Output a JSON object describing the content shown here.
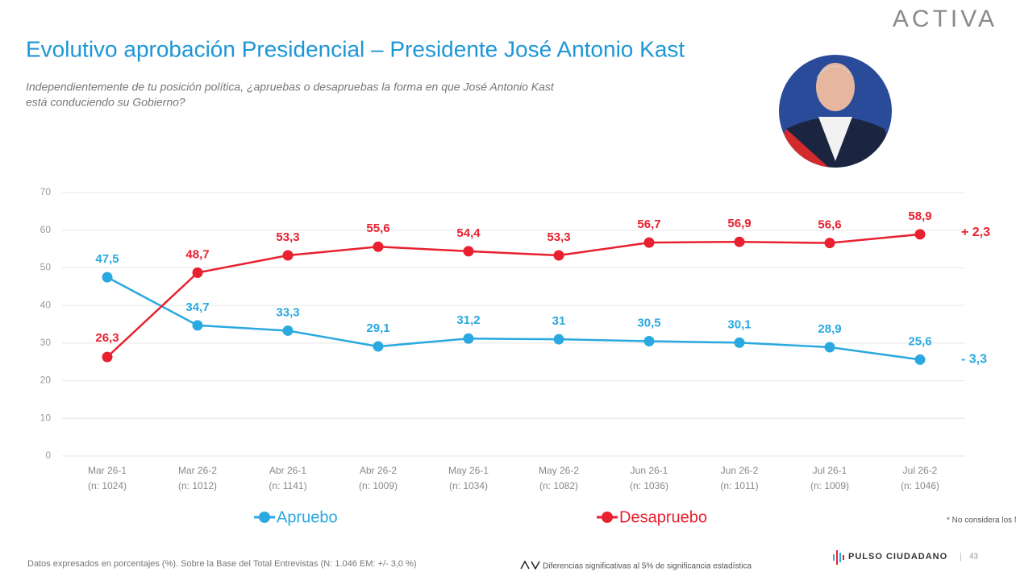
{
  "brand": "ACTIVA",
  "chart_data": {
    "type": "line",
    "title": "Evolutivo aprobación Presidencial – Presidente José Antonio Kast",
    "subtitle": [
      "Independientemente de tu posición política, ¿apruebas o desapruebas la forma en que José Antonio Kast",
      "está conduciendo su Gobierno?"
    ],
    "categories": [
      "Mar 26-1",
      "Mar 26-2",
      "Abr 26-1",
      "Abr 26-2",
      "May 26-1",
      "May 26-2",
      "Jun 26-1",
      "Jun 26-2",
      "Jul 26-1",
      "Jul 26-2"
    ],
    "sample_sizes": [
      "(n: 1024)",
      "(n: 1012)",
      "(n: 1141)",
      "(n: 1009)",
      "(n: 1034)",
      "(n: 1082)",
      "(n: 1036)",
      "(n: 1011)",
      "(n: 1009)",
      "(n: 1046)"
    ],
    "series": [
      {
        "name": "Apruebo",
        "color": "#29a9df",
        "values": [
          47.5,
          34.7,
          33.3,
          29.1,
          31.2,
          31,
          30.5,
          30.1,
          28.9,
          25.6
        ],
        "value_labels": [
          "47,5",
          "34,7",
          "33,3",
          "29,1",
          "31,2",
          "31",
          "30,5",
          "30,1",
          "28,9",
          "25,6"
        ],
        "change_label": "-  3,3"
      },
      {
        "name": "Desapruebo",
        "color": "#e8202f",
        "values": [
          26.3,
          48.7,
          53.3,
          55.6,
          54.4,
          53.3,
          56.7,
          56.9,
          56.6,
          58.9
        ],
        "value_labels": [
          "26,3",
          "48,7",
          "53,3",
          "55,6",
          "54,4",
          "53,3",
          "56,7",
          "56,9",
          "56,6",
          "58,9"
        ],
        "change_label": "+ 2,3"
      }
    ],
    "ylim": [
      0,
      70
    ],
    "yticks": [
      0,
      10,
      20,
      30,
      40,
      50,
      60,
      70
    ],
    "grid": true,
    "footnote": "* No considera los No sé"
  },
  "footer": {
    "source": "Datos expresados en porcentajes (%). Sobre la Base del Total Entrevistas (N: 1.046  EM: +/- 3,0 %)",
    "significance": "Diferencias  significativas  al 5% de significancia estadística",
    "logo": "PULSO CIUDADANO",
    "page": "43"
  }
}
